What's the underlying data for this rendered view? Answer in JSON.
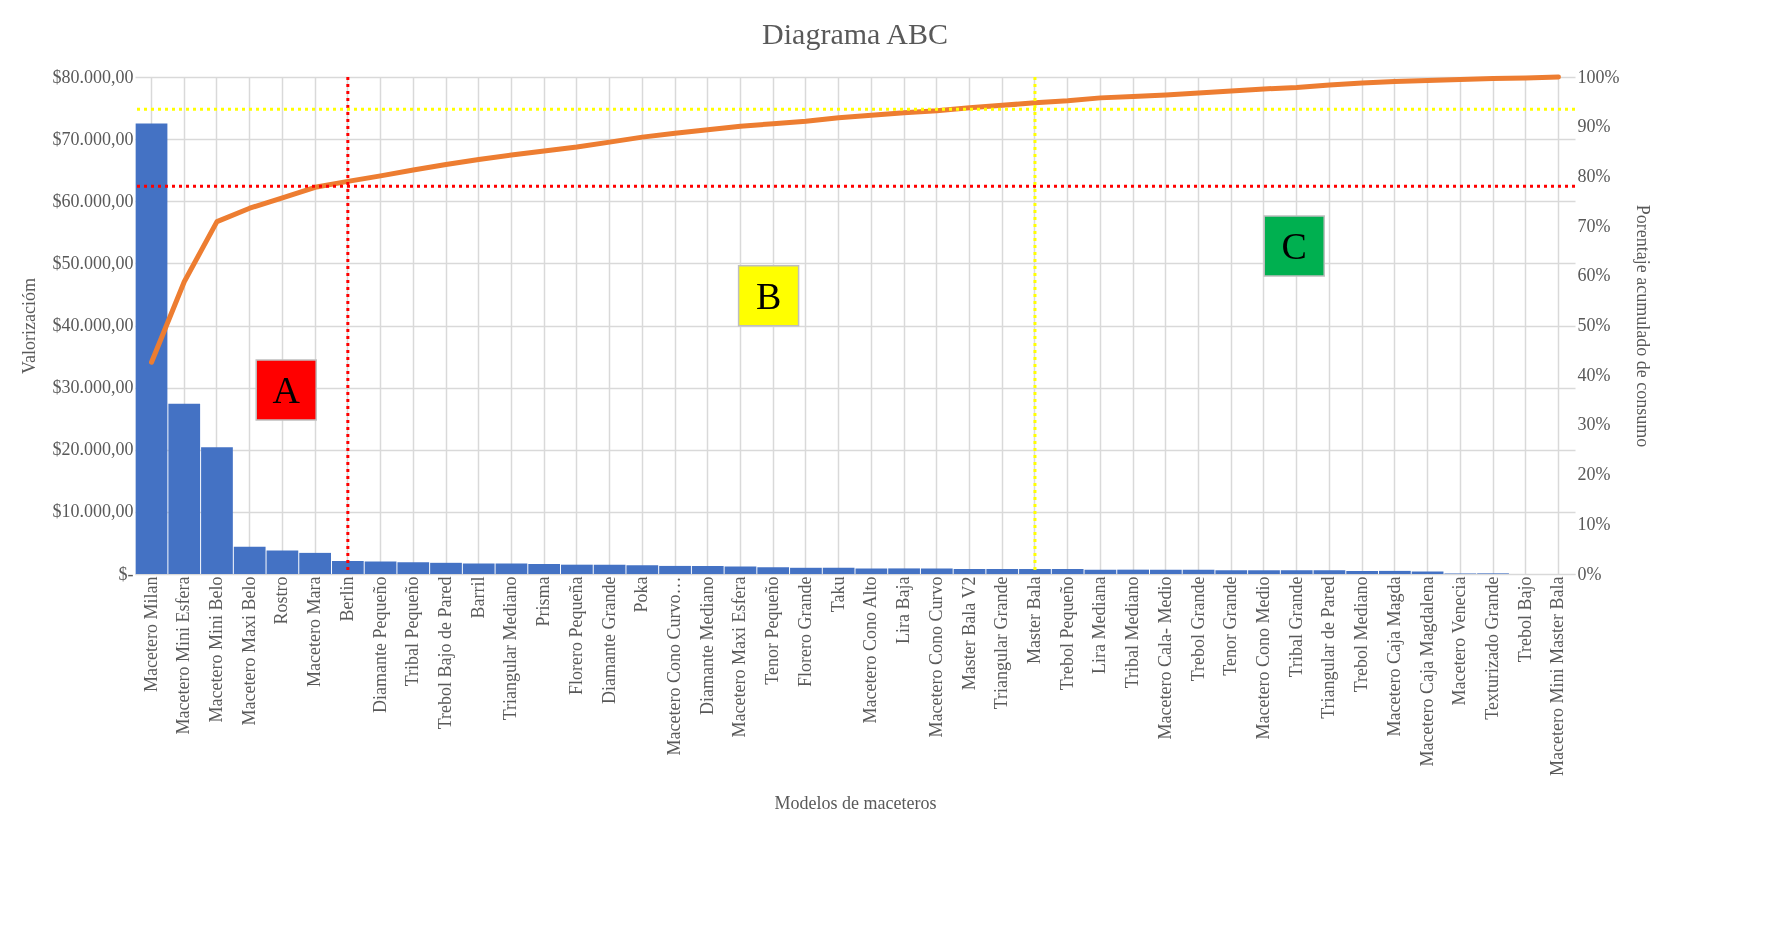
{
  "chart_data": {
    "type": "bar",
    "title": "Diagrama ABC",
    "xlabel": "Modelos de maceteros",
    "ylabel": "Valorizacióm",
    "y2label": "Porentaje acumulado de consumo",
    "categories": [
      "Macetero Milan",
      "Macetero Mini Esfera",
      "Macetero Mini Belo",
      "Macetero Maxi Belo",
      "Rostro",
      "Macetero Mara",
      "Berlin",
      "Diamante Pequeño",
      "Tribal Pequeño",
      "Trebol Bajo de Pared",
      "Barril",
      "Triangular Mediano",
      "Prisma",
      "Florero Pequeña",
      "Diamante Grande",
      "Poka",
      "Macetero Cono Curvo…",
      "Diamante Mediano",
      "Macetero Maxi Esfera",
      "Tenor Pequeño",
      "Florero Grande",
      "Taku",
      "Macetero Cono Alto",
      "Lira Baja",
      "Macetero Cono Curvo",
      "Master Bala V2",
      "Triangular Grande",
      "Master Bala",
      "Trebol Pequeño",
      "Lira Mediana",
      "Tribal Mediano",
      "Macetero Cala- Medio",
      "Trebol Grande",
      "Tenor Grande",
      "Macetero Cono Medio",
      "Tribal Grande",
      "Triangular de Pared",
      "Trebol Mediano",
      "Macetero Caja Magda",
      "Macetero Caja Magdalena",
      "Macetero Venecia",
      "Texturizado Grande",
      "Trebol Bajo",
      "Macetero Mini Master Bala"
    ],
    "series": [
      {
        "color": "#4472c4",
        "values": [
          72500,
          27400,
          20400,
          4400,
          3800,
          3400,
          2100,
          2000,
          1900,
          1800,
          1700,
          1700,
          1600,
          1500,
          1500,
          1400,
          1300,
          1300,
          1200,
          1100,
          1000,
          1000,
          900,
          900,
          900,
          800,
          800,
          800,
          800,
          700,
          700,
          700,
          700,
          600,
          600,
          600,
          600,
          500,
          500,
          400,
          100,
          100,
          0,
          0
        ]
      },
      {
        "type": "line",
        "axis": "y2",
        "color": "#ed7d31",
        "values": [
          42.6,
          58.8,
          70.9,
          73.6,
          75.7,
          77.8,
          79.0,
          80.1,
          81.3,
          82.4,
          83.4,
          84.3,
          85.1,
          85.9,
          86.9,
          87.9,
          88.7,
          89.4,
          90.1,
          90.6,
          91.1,
          91.8,
          92.3,
          92.8,
          93.2,
          93.8,
          94.3,
          94.8,
          95.2,
          95.8,
          96.1,
          96.4,
          96.8,
          97.2,
          97.6,
          97.9,
          98.4,
          98.8,
          99.1,
          99.3,
          99.5,
          99.7,
          99.8,
          100
        ]
      }
    ],
    "ylim": [
      0,
      80000
    ],
    "yticks": [
      {
        "value": 0,
        "label": "$-"
      },
      {
        "value": 10000,
        "label": "$10.000,00"
      },
      {
        "value": 20000,
        "label": "$20.000,00"
      },
      {
        "value": 30000,
        "label": "$30.000,00"
      },
      {
        "value": 40000,
        "label": "$40.000,00"
      },
      {
        "value": 50000,
        "label": "$50.000,00"
      },
      {
        "value": 60000,
        "label": "$60.000,00"
      },
      {
        "value": 70000,
        "label": "$70.000,00"
      },
      {
        "value": 80000,
        "label": "$80.000,00"
      }
    ],
    "y2lim": [
      0,
      100
    ],
    "y2ticks": [
      {
        "value": 0,
        "label": "0%"
      },
      {
        "value": 10,
        "label": "10%"
      },
      {
        "value": 20,
        "label": "20%"
      },
      {
        "value": 30,
        "label": "30%"
      },
      {
        "value": 40,
        "label": "40%"
      },
      {
        "value": 50,
        "label": "50%"
      },
      {
        "value": 60,
        "label": "60%"
      },
      {
        "value": 70,
        "label": "70%"
      },
      {
        "value": 80,
        "label": "80%"
      },
      {
        "value": 90,
        "label": "90%"
      },
      {
        "value": 100,
        "label": "100%"
      }
    ],
    "ref_lines": [
      {
        "axis": "y2",
        "value": 78,
        "color": "#ff0000",
        "line_style": "dotted"
      },
      {
        "axis": "x",
        "value": "Berlin",
        "color": "#ff0000",
        "line_style": "dotted"
      },
      {
        "axis": "y2",
        "value": 93.5,
        "color": "#ffff00",
        "line_style": "dotted"
      },
      {
        "axis": "x",
        "value": "Master Bala",
        "color": "#ffff00",
        "line_style": "dotted"
      }
    ],
    "annotations": [
      "A",
      "B",
      "C"
    ],
    "grid": true,
    "marker": "none"
  }
}
